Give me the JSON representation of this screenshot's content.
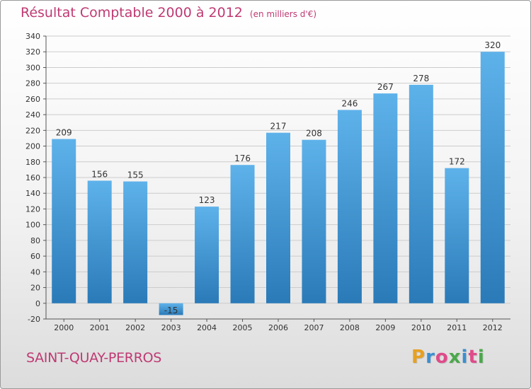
{
  "header": {
    "title": "Résultat Comptable 2000 à 2012",
    "unit": "(en milliers d'€)"
  },
  "footer": {
    "commune": "SAINT-QUAY-PERROS",
    "logo_letters": [
      "P",
      "r",
      "o",
      "x",
      "i",
      "t",
      "i"
    ],
    "logo_colors": [
      "#e8a020",
      "#3a8fd0",
      "#e04a8a",
      "#4aa84a",
      "#3a8fd0",
      "#e04a8a",
      "#4aa84a"
    ]
  },
  "colors": {
    "bar_top": "#5eb2ea",
    "bar_bottom": "#2a7ab8",
    "title": "#bf3a73",
    "grid": "#cccccc"
  },
  "chart_data": {
    "type": "bar",
    "title": "Résultat Comptable 2000 à 2012",
    "subtitle": "(en milliers d'€)",
    "categories": [
      "2000",
      "2001",
      "2002",
      "2003",
      "2004",
      "2005",
      "2006",
      "2007",
      "2008",
      "2009",
      "2010",
      "2011",
      "2012"
    ],
    "values": [
      209,
      156,
      155,
      -15,
      123,
      176,
      217,
      208,
      246,
      267,
      278,
      172,
      320
    ],
    "ylim": [
      -20,
      340
    ],
    "yticks": [
      -20,
      0,
      20,
      40,
      60,
      80,
      100,
      120,
      140,
      160,
      180,
      200,
      220,
      240,
      260,
      280,
      300,
      320,
      340
    ],
    "grid": true
  }
}
